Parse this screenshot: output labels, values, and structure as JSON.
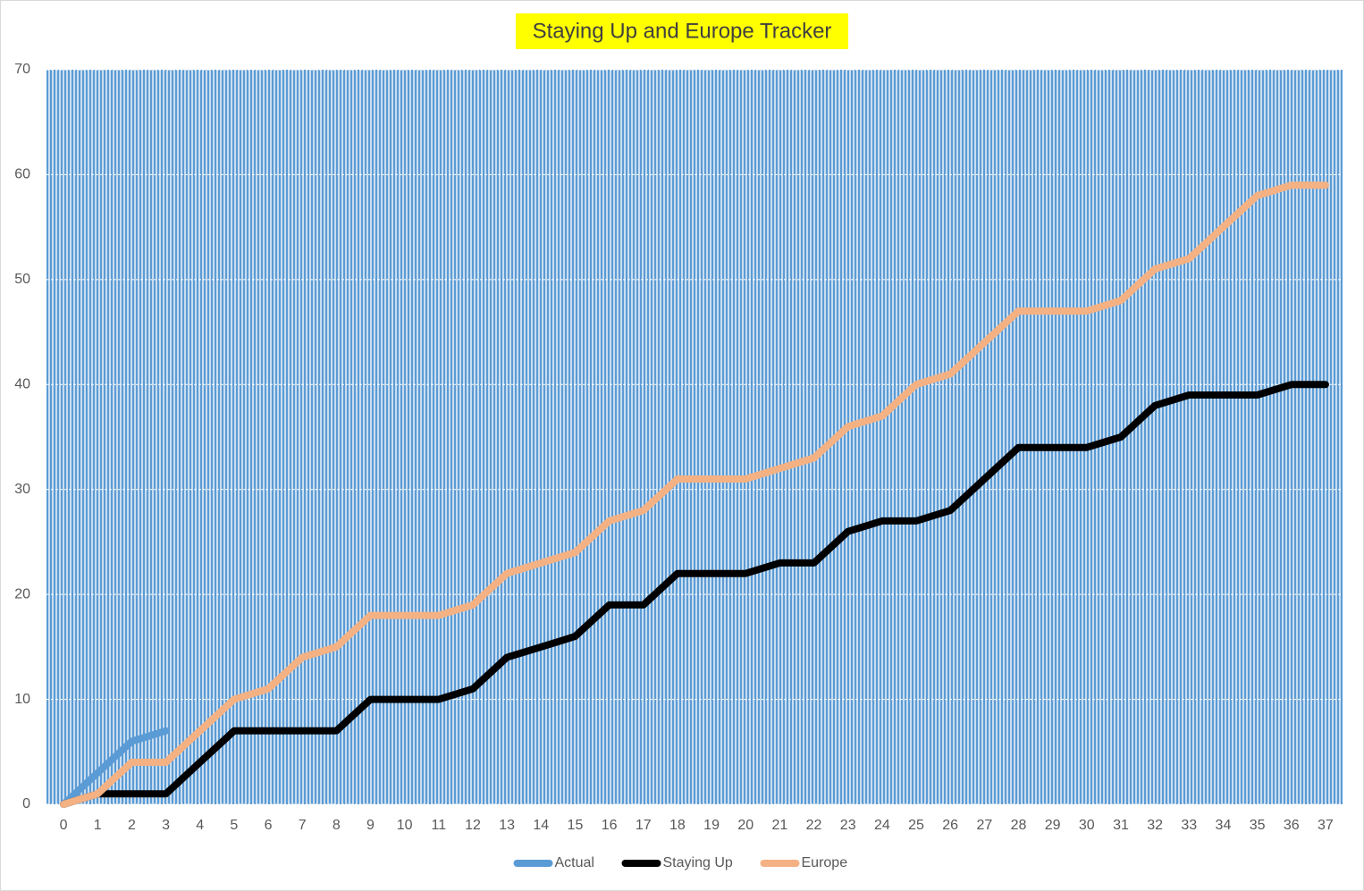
{
  "chart_data": {
    "type": "line",
    "title": "Staying Up and Europe Tracker",
    "categories": [
      0,
      1,
      2,
      3,
      4,
      5,
      6,
      7,
      8,
      9,
      10,
      11,
      12,
      13,
      14,
      15,
      16,
      17,
      18,
      19,
      20,
      21,
      22,
      23,
      24,
      25,
      26,
      27,
      28,
      29,
      30,
      31,
      32,
      33,
      34,
      35,
      36,
      37
    ],
    "series": [
      {
        "name": "Actual",
        "color": "#5b9bd5",
        "values": [
          0,
          3,
          6,
          7,
          null,
          null,
          null,
          null,
          null,
          null,
          null,
          null,
          null,
          null,
          null,
          null,
          null,
          null,
          null,
          null,
          null,
          null,
          null,
          null,
          null,
          null,
          null,
          null,
          null,
          null,
          null,
          null,
          null,
          null,
          null,
          null,
          null,
          null
        ]
      },
      {
        "name": "Staying Up",
        "color": "#000000",
        "values": [
          0,
          1,
          1,
          1,
          4,
          7,
          7,
          7,
          7,
          10,
          10,
          10,
          11,
          14,
          15,
          16,
          19,
          19,
          22,
          22,
          22,
          23,
          23,
          26,
          27,
          27,
          28,
          31,
          34,
          34,
          34,
          35,
          38,
          39,
          39,
          39,
          40,
          40
        ]
      },
      {
        "name": "Europe",
        "color": "#f4b183",
        "values": [
          0,
          1,
          4,
          4,
          7,
          10,
          11,
          14,
          15,
          18,
          18,
          18,
          19,
          22,
          23,
          24,
          27,
          28,
          31,
          31,
          31,
          32,
          33,
          36,
          37,
          40,
          41,
          44,
          47,
          47,
          47,
          48,
          51,
          52,
          55,
          58,
          59,
          59
        ]
      }
    ],
    "ylim": [
      0,
      70
    ],
    "yticks": [
      0,
      10,
      20,
      30,
      40,
      50,
      60,
      70
    ],
    "grid": true,
    "legend": "bottom"
  }
}
